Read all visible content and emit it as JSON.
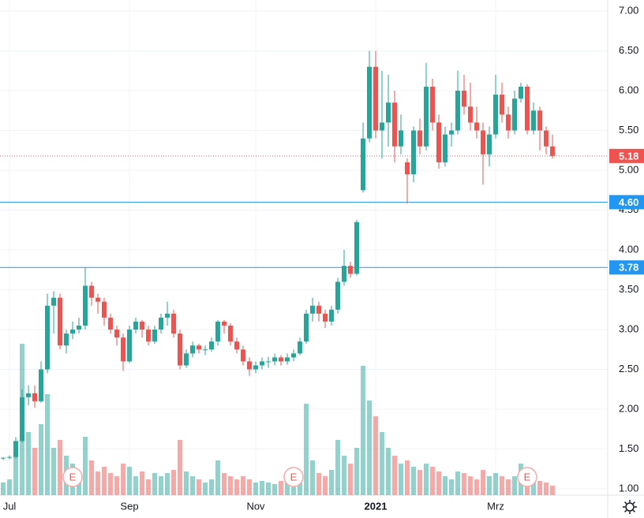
{
  "chart_data": {
    "type": "candlestick",
    "categories": [
      null,
      "Jul",
      null,
      null,
      null,
      null,
      null,
      null,
      null,
      null,
      null,
      null,
      null,
      null,
      null,
      null,
      null,
      null,
      null,
      null,
      "Sep",
      null,
      null,
      null,
      null,
      null,
      null,
      null,
      null,
      null,
      null,
      null,
      null,
      null,
      null,
      null,
      null,
      null,
      null,
      null,
      "Nov",
      null,
      null,
      null,
      null,
      null,
      null,
      null,
      null,
      null,
      null,
      null,
      null,
      null,
      null,
      null,
      null,
      null,
      null,
      "2021",
      null,
      null,
      null,
      null,
      null,
      null,
      null,
      null,
      null,
      null,
      null,
      null,
      null,
      null,
      null,
      null,
      null,
      null,
      "Mrz",
      null,
      null,
      null,
      null,
      null,
      null,
      null,
      null,
      null
    ],
    "open": [
      1.38,
      1.39,
      1.4,
      1.6,
      2.15,
      2.2,
      2.1,
      2.5,
      3.3,
      3.4,
      2.8,
      2.95,
      3.0,
      3.05,
      3.55,
      3.4,
      3.35,
      3.15,
      3.0,
      2.9,
      2.6,
      3.0,
      3.1,
      3.0,
      2.85,
      3.0,
      3.15,
      3.2,
      2.95,
      2.55,
      2.7,
      2.8,
      2.75,
      2.75,
      2.85,
      3.1,
      3.05,
      2.85,
      2.75,
      2.6,
      2.5,
      2.55,
      2.6,
      2.6,
      2.65,
      2.6,
      2.65,
      2.7,
      2.85,
      3.2,
      3.3,
      3.2,
      3.1,
      3.25,
      3.6,
      3.8,
      3.7,
      4.75,
      5.4,
      6.3,
      5.5,
      5.6,
      5.85,
      5.3,
      5.1,
      4.95,
      5.5,
      5.3,
      6.05,
      5.6,
      5.1,
      5.45,
      5.5,
      6.0,
      5.8,
      5.6,
      5.5,
      5.2,
      5.45,
      5.95,
      5.7,
      5.5,
      5.9,
      6.05,
      5.5,
      5.75,
      5.5,
      5.3
    ],
    "high": [
      1.4,
      1.42,
      1.65,
      2.25,
      2.3,
      2.3,
      2.6,
      3.45,
      3.48,
      3.45,
      3.0,
      3.1,
      3.15,
      3.78,
      3.6,
      3.45,
      3.4,
      3.2,
      3.05,
      2.95,
      3.05,
      3.15,
      3.12,
      3.05,
      3.05,
      3.2,
      3.35,
      3.25,
      3.0,
      2.75,
      2.85,
      2.82,
      2.8,
      2.9,
      3.12,
      3.12,
      3.08,
      2.9,
      2.8,
      2.65,
      2.6,
      2.65,
      2.66,
      2.7,
      2.68,
      2.7,
      2.75,
      2.9,
      3.25,
      3.4,
      3.35,
      3.25,
      3.3,
      3.65,
      4.0,
      3.85,
      4.38,
      5.6,
      6.5,
      6.5,
      6.25,
      6.2,
      6.0,
      5.7,
      5.15,
      5.55,
      5.65,
      6.35,
      6.15,
      5.7,
      5.55,
      5.6,
      6.25,
      6.2,
      6.1,
      5.8,
      5.6,
      5.55,
      6.2,
      6.1,
      5.8,
      6.0,
      6.1,
      6.08,
      5.85,
      5.8,
      5.55,
      5.45
    ],
    "low": [
      1.36,
      1.37,
      1.38,
      1.58,
      2.05,
      2.02,
      2.08,
      2.45,
      2.95,
      2.75,
      2.7,
      2.88,
      2.95,
      3.0,
      3.3,
      3.2,
      3.05,
      2.95,
      2.8,
      2.48,
      2.58,
      2.95,
      2.9,
      2.8,
      2.82,
      2.95,
      3.05,
      2.9,
      2.5,
      2.52,
      2.65,
      2.7,
      2.68,
      2.72,
      2.8,
      2.95,
      2.8,
      2.7,
      2.55,
      2.42,
      2.45,
      2.5,
      2.52,
      2.55,
      2.55,
      2.56,
      2.6,
      2.68,
      2.82,
      3.1,
      3.1,
      3.02,
      3.05,
      3.2,
      3.55,
      3.65,
      3.68,
      4.72,
      5.35,
      5.4,
      5.15,
      5.3,
      5.1,
      5.2,
      4.58,
      4.85,
      5.2,
      5.25,
      5.5,
      5.02,
      5.05,
      5.3,
      5.45,
      5.7,
      5.5,
      5.4,
      4.82,
      5.05,
      5.4,
      5.6,
      5.4,
      5.45,
      5.85,
      5.45,
      5.45,
      5.25,
      5.2,
      5.15
    ],
    "close": [
      1.39,
      1.4,
      1.6,
      2.15,
      2.2,
      2.1,
      2.5,
      3.3,
      3.4,
      2.8,
      2.95,
      3.0,
      3.05,
      3.55,
      3.4,
      3.35,
      3.15,
      3.0,
      2.9,
      2.6,
      3.0,
      3.1,
      3.0,
      2.85,
      3.0,
      3.15,
      3.2,
      2.95,
      2.55,
      2.7,
      2.8,
      2.75,
      2.75,
      2.85,
      3.1,
      3.05,
      2.85,
      2.75,
      2.6,
      2.5,
      2.55,
      2.6,
      2.6,
      2.65,
      2.6,
      2.65,
      2.7,
      2.85,
      3.2,
      3.3,
      3.2,
      3.1,
      3.25,
      3.6,
      3.8,
      3.7,
      4.35,
      5.4,
      6.3,
      5.5,
      5.6,
      5.85,
      5.3,
      5.5,
      4.95,
      5.5,
      5.3,
      6.05,
      5.6,
      5.1,
      5.45,
      5.5,
      6.0,
      5.8,
      5.6,
      5.5,
      5.2,
      5.45,
      5.95,
      5.7,
      5.5,
      5.9,
      6.05,
      5.5,
      5.75,
      5.5,
      5.3,
      5.18
    ],
    "volume": [
      8,
      10,
      30,
      96,
      40,
      30,
      45,
      64,
      30,
      35,
      25,
      20,
      15,
      37,
      22,
      15,
      18,
      14,
      12,
      20,
      18,
      12,
      15,
      10,
      14,
      12,
      14,
      16,
      35,
      15,
      12,
      10,
      8,
      10,
      22,
      14,
      12,
      10,
      12,
      10,
      8,
      9,
      8,
      7,
      9,
      12,
      10,
      14,
      58,
      22,
      14,
      12,
      16,
      35,
      25,
      20,
      30,
      82,
      60,
      50,
      40,
      30,
      25,
      20,
      22,
      18,
      16,
      20,
      18,
      15,
      12,
      10,
      15,
      14,
      12,
      10,
      16,
      12,
      14,
      12,
      10,
      12,
      20,
      14,
      10,
      9,
      8,
      6
    ],
    "volume_ylim": [
      0,
      100
    ],
    "up_color": "#26a69a",
    "down_color": "#ef5350",
    "ylim": [
      1,
      7
    ],
    "yticks": [
      {
        "value": 1,
        "label": "1.00"
      },
      {
        "value": 1.5,
        "label": "1.50"
      },
      {
        "value": 2,
        "label": "2.00"
      },
      {
        "value": 2.5,
        "label": "2.50"
      },
      {
        "value": 3,
        "label": "3.00"
      },
      {
        "value": 3.5,
        "label": "3.50"
      },
      {
        "value": 4,
        "label": "4.00"
      },
      {
        "value": 4.5,
        "label": "4.50"
      },
      {
        "value": 5,
        "label": "5.00"
      },
      {
        "value": 5.5,
        "label": "5.50"
      },
      {
        "value": 6,
        "label": "6.00"
      },
      {
        "value": 6.5,
        "label": "6.50"
      },
      {
        "value": 7,
        "label": "7.00"
      }
    ],
    "grid": true,
    "price_lines": [
      {
        "value": 4.6,
        "label": "4.60",
        "color": "#2196f3"
      },
      {
        "value": 3.78,
        "label": "3.78",
        "color": "#2196f3"
      }
    ],
    "last_price": {
      "value": 5.18,
      "label": "5.18",
      "color": "#ef5350"
    },
    "events": [
      {
        "index": 11,
        "label": "E"
      },
      {
        "index": 46,
        "label": "E"
      },
      {
        "index": 83,
        "label": "E"
      }
    ]
  }
}
